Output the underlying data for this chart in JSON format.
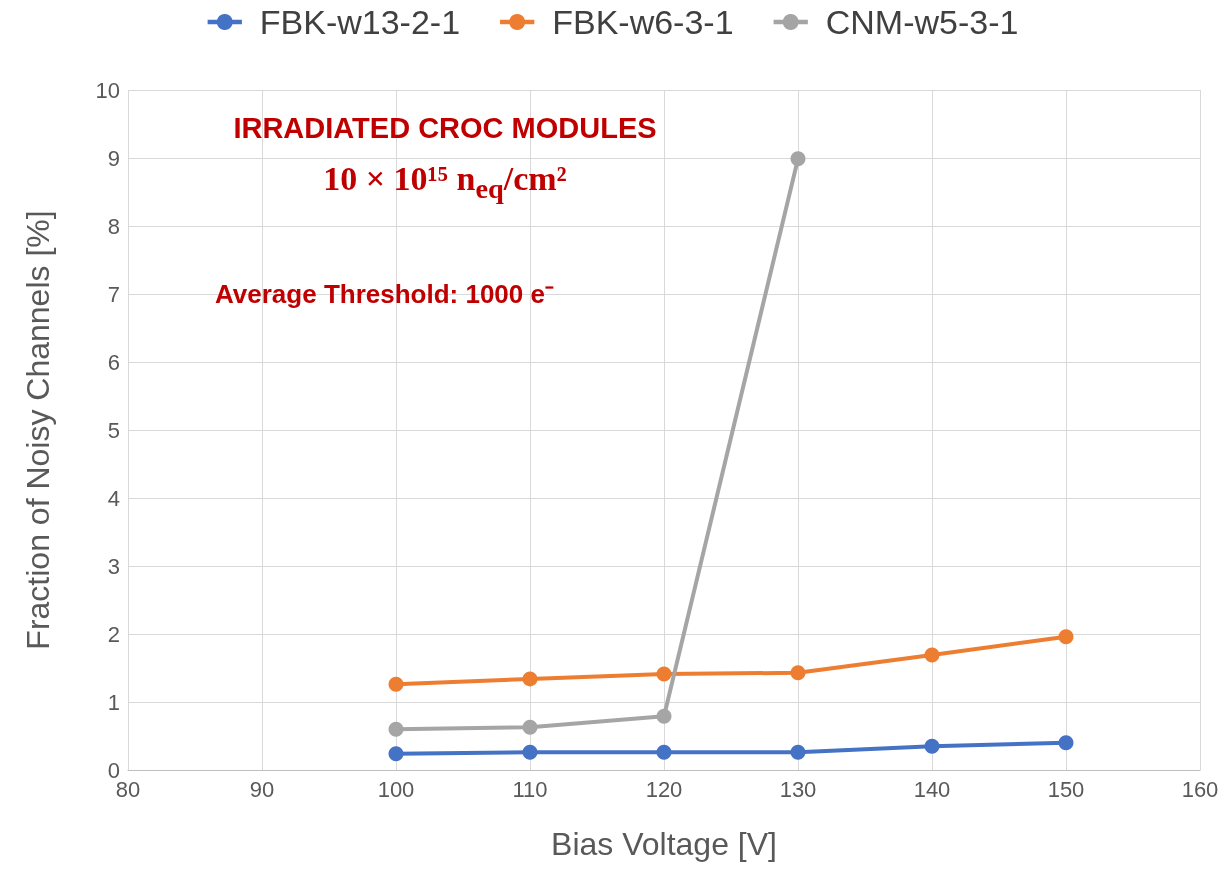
{
  "chart_data": {
    "type": "line",
    "x": [
      100,
      110,
      120,
      130,
      140,
      150
    ],
    "series": [
      {
        "name": "FBK-w13-2-1",
        "color": "#4472c4",
        "values": [
          0.24,
          0.26,
          0.26,
          0.26,
          0.35,
          0.4
        ]
      },
      {
        "name": "FBK-w6-3-1",
        "color": "#ed7d31",
        "values": [
          1.26,
          1.34,
          1.41,
          1.43,
          1.69,
          1.96
        ]
      },
      {
        "name": "CNM-w5-3-1",
        "color": "#a5a5a5",
        "values": [
          0.6,
          0.63,
          0.79,
          8.99,
          null,
          null
        ]
      }
    ],
    "xlabel": "Bias Voltage [V]",
    "ylabel": "Fraction of Noisy Channels [%]",
    "xlim": [
      80,
      160
    ],
    "xticks": [
      80,
      90,
      100,
      110,
      120,
      130,
      140,
      150,
      160
    ],
    "ylim": [
      0,
      10
    ],
    "yticks": [
      0,
      1,
      2,
      3,
      4,
      5,
      6,
      7,
      8,
      9,
      10
    ],
    "annotations": [
      "IRRADIATED CROC MODULES",
      "10 × 10¹⁵ n$_{eq}$/cm²",
      "Average Threshold: 1000 e⁻"
    ],
    "grid": true,
    "legend": "top",
    "marker": "circle",
    "line_style": "solid"
  }
}
